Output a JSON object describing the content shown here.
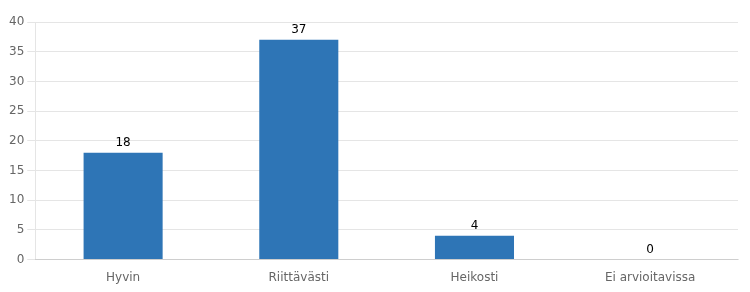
{
  "chart_data": {
    "type": "bar",
    "categories": [
      "Hyvin",
      "Riittävästi",
      "Heikosti",
      "Ei arvioitavissa"
    ],
    "values": [
      18,
      37,
      4,
      0
    ],
    "color": "#2E75B6",
    "ylim": [
      0,
      40
    ],
    "yticks": [
      0,
      5,
      10,
      15,
      20,
      25,
      30,
      35,
      40
    ],
    "grid": true,
    "data_labels": true
  }
}
